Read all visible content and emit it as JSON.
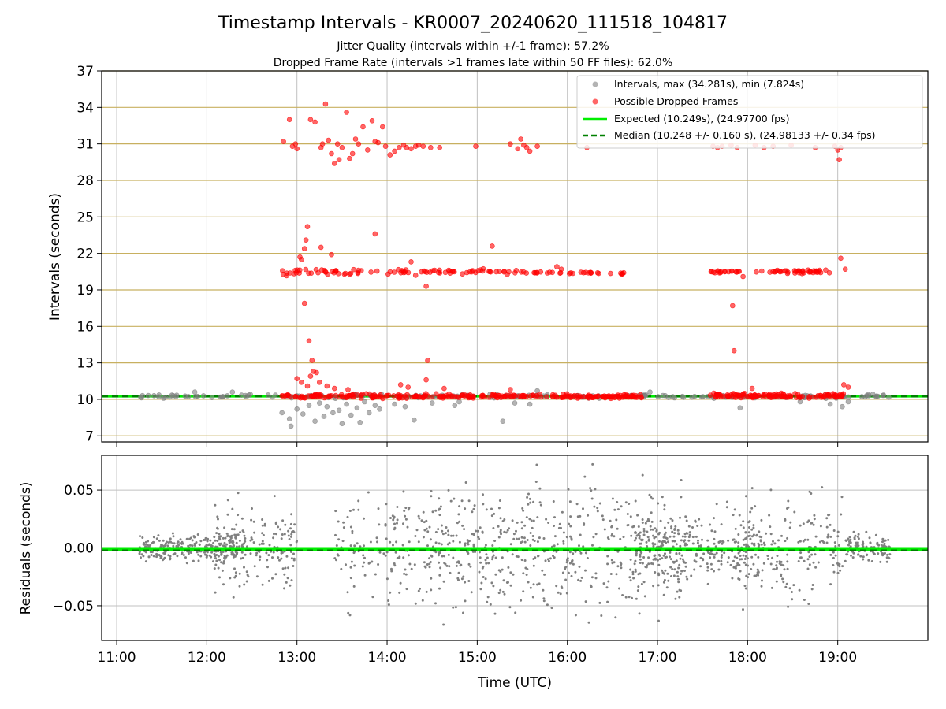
{
  "figure": {
    "title": "Timestamp Intervals - KR0007_20240620_111518_104817",
    "subtitle_line1": "Jitter Quality (intervals within +/-1 frame): 57.2%",
    "subtitle_line2": "Dropped Frame Rate (intervals >1 frames late within 50 FF files): 62.0%"
  },
  "colors": {
    "intervals": "#808080",
    "dropped": "#ff0000",
    "expected": "#00ee00",
    "median": "#008000",
    "grid_gold": "#c8b060",
    "grid_gray": "#c0c0c0"
  },
  "chart_data": [
    {
      "type": "scatter",
      "ylabel": "Intervals (seconds)",
      "xlabel": "",
      "xlim": [
        "10:50",
        "20:00"
      ],
      "ylim": [
        6.5,
        37
      ],
      "y_ticks": [
        "7",
        "10",
        "13",
        "16",
        "19",
        "22",
        "25",
        "28",
        "31",
        "34",
        "37"
      ],
      "x_ticks": [
        "11:00",
        "12:00",
        "13:00",
        "14:00",
        "15:00",
        "16:00",
        "17:00",
        "18:00",
        "19:00"
      ],
      "horizontal_grid": "gold",
      "vertical_grid": true,
      "legend_placement": "top-right",
      "legend": [
        "Intervals, max (34.281s), min (7.824s)",
        "Possible Dropped Frames",
        "Expected (10.249s), (24.97700 fps)",
        "Median (10.248 +/- 0.160 s), (24.98133 +/- 0.34 fps)"
      ],
      "reference_lines": [
        {
          "label": "Expected (10.249s), (24.97700 fps)",
          "y": 10.249,
          "style": "solid"
        },
        {
          "label": "Median (10.248 +/- 0.160 s), (24.98133 +/- 0.34 fps)",
          "y": 10.248,
          "style": "dashed"
        }
      ],
      "series": [
        {
          "name": "Intervals, max (34.281s), min (7.824s)",
          "marker": "circle",
          "points": [
            [
              "12:50",
              8.9
            ],
            [
              "12:55",
              8.4
            ],
            [
              "12:56",
              7.8
            ],
            [
              "13:00",
              9.2
            ],
            [
              "13:04",
              8.8
            ],
            [
              "13:08",
              9.5
            ],
            [
              "13:12",
              8.2
            ],
            [
              "13:15",
              9.7
            ],
            [
              "13:18",
              8.6
            ],
            [
              "13:20",
              9.4
            ],
            [
              "13:24",
              8.9
            ],
            [
              "13:28",
              9.1
            ],
            [
              "13:30",
              8.0
            ],
            [
              "13:33",
              9.6
            ],
            [
              "13:36",
              8.7
            ],
            [
              "13:40",
              9.3
            ],
            [
              "13:42",
              8.1
            ],
            [
              "13:45",
              9.8
            ],
            [
              "13:48",
              8.9
            ],
            [
              "13:52",
              9.5
            ],
            [
              "13:55",
              9.2
            ],
            [
              "14:05",
              9.6
            ],
            [
              "14:12",
              9.4
            ],
            [
              "14:18",
              8.3
            ],
            [
              "14:30",
              9.7
            ],
            [
              "14:45",
              9.5
            ],
            [
              "14:48",
              9.8
            ],
            [
              "15:17",
              8.2
            ],
            [
              "15:25",
              9.7
            ],
            [
              "15:35",
              9.6
            ],
            [
              "17:55",
              9.3
            ],
            [
              "18:35",
              9.8
            ],
            [
              "18:55",
              9.6
            ],
            [
              "19:03",
              9.4
            ],
            [
              "19:07",
              9.8
            ],
            [
              "11:52",
              10.6
            ],
            [
              "12:17",
              10.6
            ],
            [
              "15:40",
              10.7
            ],
            [
              "16:55",
              10.6
            ]
          ],
          "band": {
            "x_start": "11:15",
            "x_end": "19:35",
            "y": 10.25,
            "spread": 0.25,
            "count": 220
          }
        },
        {
          "name": "Possible Dropped Frames",
          "marker": "circle",
          "points": [
            [
              "12:51",
              31.2
            ],
            [
              "12:55",
              33.0
            ],
            [
              "12:57",
              30.8
            ],
            [
              "12:59",
              31.0
            ],
            [
              "13:00",
              30.6
            ],
            [
              "13:09",
              33.0
            ],
            [
              "13:12",
              32.8
            ],
            [
              "13:16",
              30.7
            ],
            [
              "13:17",
              31.0
            ],
            [
              "13:19",
              34.28
            ],
            [
              "13:21",
              31.3
            ],
            [
              "13:23",
              30.2
            ],
            [
              "13:25",
              29.4
            ],
            [
              "13:27",
              31.0
            ],
            [
              "13:28",
              29.7
            ],
            [
              "13:30",
              30.7
            ],
            [
              "13:33",
              33.6
            ],
            [
              "13:35",
              29.8
            ],
            [
              "13:37",
              30.2
            ],
            [
              "13:39",
              31.4
            ],
            [
              "13:41",
              31.0
            ],
            [
              "13:44",
              32.4
            ],
            [
              "13:47",
              30.5
            ],
            [
              "13:50",
              32.9
            ],
            [
              "13:52",
              31.2
            ],
            [
              "13:54",
              31.1
            ],
            [
              "13:57",
              32.4
            ],
            [
              "13:59",
              30.8
            ],
            [
              "14:02",
              30.1
            ],
            [
              "14:05",
              30.4
            ],
            [
              "14:08",
              30.7
            ],
            [
              "14:11",
              30.9
            ],
            [
              "14:13",
              30.7
            ],
            [
              "14:16",
              30.6
            ],
            [
              "14:19",
              30.8
            ],
            [
              "14:21",
              30.9
            ],
            [
              "14:24",
              30.8
            ],
            [
              "14:29",
              30.7
            ],
            [
              "14:35",
              30.7
            ],
            [
              "14:59",
              30.8
            ],
            [
              "15:22",
              31.0
            ],
            [
              "15:27",
              30.6
            ],
            [
              "15:29",
              31.4
            ],
            [
              "15:31",
              30.9
            ],
            [
              "15:33",
              30.7
            ],
            [
              "15:35",
              30.4
            ],
            [
              "15:40",
              30.8
            ],
            [
              "16:13",
              30.7
            ],
            [
              "17:37",
              30.8
            ],
            [
              "17:40",
              30.7
            ],
            [
              "17:43",
              30.8
            ],
            [
              "17:49",
              30.9
            ],
            [
              "17:53",
              30.7
            ],
            [
              "18:05",
              30.9
            ],
            [
              "18:11",
              30.7
            ],
            [
              "18:17",
              30.8
            ],
            [
              "18:29",
              30.9
            ],
            [
              "18:45",
              30.7
            ],
            [
              "18:58",
              30.8
            ],
            [
              "19:00",
              30.5
            ],
            [
              "19:02",
              30.7
            ],
            [
              "19:01",
              29.7
            ],
            [
              "13:07",
              24.2
            ],
            [
              "13:06",
              23.1
            ],
            [
              "13:05",
              22.4
            ],
            [
              "13:02",
              21.7
            ],
            [
              "13:03",
              21.5
            ],
            [
              "13:16",
              22.5
            ],
            [
              "13:23",
              21.9
            ],
            [
              "13:52",
              23.6
            ],
            [
              "14:16",
              21.3
            ],
            [
              "14:19",
              20.2
            ],
            [
              "14:26",
              19.3
            ],
            [
              "15:10",
              22.6
            ],
            [
              "15:53",
              20.9
            ],
            [
              "15:56",
              20.7
            ],
            [
              "17:57",
              20.1
            ],
            [
              "19:02",
              21.6
            ],
            [
              "19:05",
              20.7
            ],
            [
              "13:05",
              17.9
            ],
            [
              "13:08",
              14.8
            ],
            [
              "13:10",
              13.2
            ],
            [
              "14:27",
              13.2
            ],
            [
              "17:50",
              17.7
            ],
            [
              "17:51",
              14.0
            ],
            [
              "13:00",
              11.7
            ],
            [
              "13:03",
              11.4
            ],
            [
              "13:07",
              11.1
            ],
            [
              "13:09",
              11.9
            ],
            [
              "13:11",
              12.3
            ],
            [
              "13:13",
              12.2
            ],
            [
              "13:15",
              11.4
            ],
            [
              "13:20",
              11.1
            ],
            [
              "13:25",
              10.9
            ],
            [
              "13:34",
              10.8
            ],
            [
              "14:09",
              11.2
            ],
            [
              "14:14",
              11.0
            ],
            [
              "14:26",
              11.6
            ],
            [
              "14:38",
              10.9
            ],
            [
              "15:22",
              10.8
            ],
            [
              "18:03",
              10.9
            ],
            [
              "19:04",
              11.2
            ],
            [
              "19:07",
              11.0
            ]
          ],
          "clusters": [
            {
              "x_start": "12:50",
              "x_end": "13:45",
              "y": 20.5,
              "spread": 0.5,
              "count": 36
            },
            {
              "x_start": "13:45",
              "x_end": "14:45",
              "y": 20.5,
              "spread": 0.35,
              "count": 30
            },
            {
              "x_start": "14:50",
              "x_end": "15:30",
              "y": 20.5,
              "spread": 0.3,
              "count": 22
            },
            {
              "x_start": "15:30",
              "x_end": "16:40",
              "y": 20.4,
              "spread": 0.15,
              "count": 30
            },
            {
              "x_start": "17:35",
              "x_end": "17:55",
              "y": 20.5,
              "spread": 0.2,
              "count": 18
            },
            {
              "x_start": "18:05",
              "x_end": "18:55",
              "y": 20.5,
              "spread": 0.25,
              "count": 40
            },
            {
              "x_start": "12:50",
              "x_end": "16:50",
              "y": 10.25,
              "spread": 0.3,
              "count": 260
            },
            {
              "x_start": "17:35",
              "x_end": "19:05",
              "y": 10.3,
              "spread": 0.3,
              "count": 120
            }
          ]
        }
      ]
    },
    {
      "type": "scatter",
      "ylabel": "Residuals (seconds)",
      "xlabel": "Time (UTC)",
      "xlim": [
        "10:50",
        "20:00"
      ],
      "ylim": [
        -0.08,
        0.08
      ],
      "y_ticks": [
        "−0.05",
        "0.00",
        "0.05"
      ],
      "x_ticks": [
        "11:00",
        "12:00",
        "13:00",
        "14:00",
        "15:00",
        "16:00",
        "17:00",
        "18:00",
        "19:00"
      ],
      "grid": true,
      "reference_lines": [
        {
          "label": "Expected (10.249s), (24.97700 fps)",
          "y": -0.001,
          "style": "solid"
        },
        {
          "label": "Median (10.248 +/- 0.160 s), (24.98133 +/- 0.34 fps)",
          "y": -0.002,
          "style": "dashed"
        }
      ],
      "series": [
        {
          "name": "",
          "marker": "dot",
          "segments": [
            {
              "x_start": "11:15",
              "x_end": "12:20",
              "spread": 0.012,
              "count": 260
            },
            {
              "x_start": "12:05",
              "x_end": "13:00",
              "spread": 0.035,
              "count": 200
            },
            {
              "x_start": "13:25",
              "x_end": "14:00",
              "spread": 0.05,
              "count": 70
            },
            {
              "x_start": "14:00",
              "x_end": "17:20",
              "spread": 0.055,
              "count": 640
            },
            {
              "x_start": "16:45",
              "x_end": "18:10",
              "spread": 0.03,
              "count": 260
            },
            {
              "x_start": "17:50",
              "x_end": "19:05",
              "spread": 0.05,
              "count": 200
            },
            {
              "x_start": "19:05",
              "x_end": "19:35",
              "spread": 0.012,
              "count": 130
            }
          ]
        }
      ]
    }
  ]
}
